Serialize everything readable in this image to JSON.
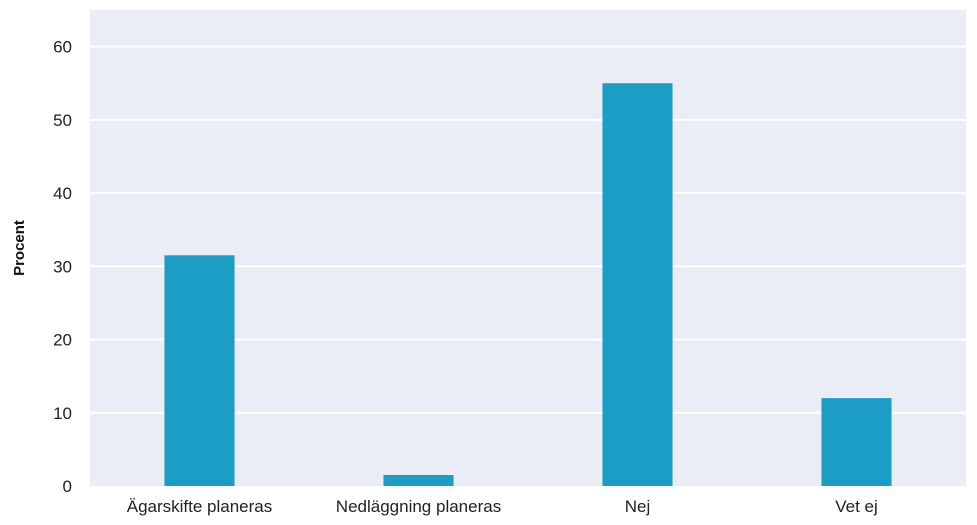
{
  "chart_data": {
    "type": "bar",
    "title": "",
    "xlabel": "",
    "ylabel": "Procent",
    "categories": [
      "Ägarskifte planeras",
      "Nedläggning planeras",
      "Nej",
      "Vet ej"
    ],
    "values": [
      31.5,
      1.5,
      55,
      12
    ],
    "ylim": [
      0,
      65
    ],
    "yticks": [
      0,
      10,
      20,
      30,
      40,
      50,
      60
    ],
    "grid": true,
    "legend": "none",
    "colors": {
      "bar": "#1b9dc6",
      "plot_background": "#eaedf6",
      "gridline": "#ffffff"
    }
  }
}
